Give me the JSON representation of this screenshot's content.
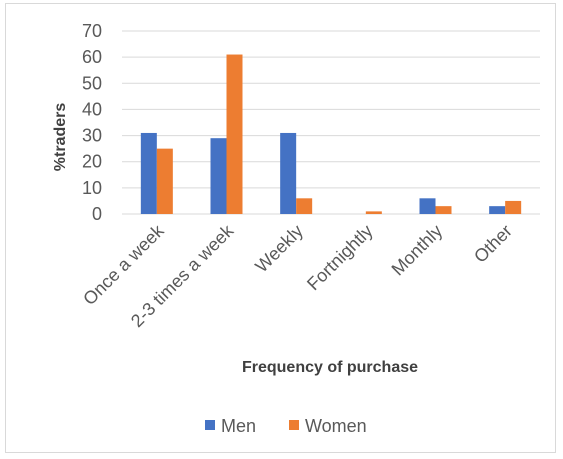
{
  "chart_data": {
    "type": "bar",
    "title": "",
    "xlabel": "Frequency of purchase",
    "ylabel": "%traders",
    "categories": [
      "Once a week",
      "2-3 times a week",
      "Weekly",
      "Fortnightly",
      "Monthly",
      "Other"
    ],
    "series": [
      {
        "name": "Men",
        "values": [
          31,
          29,
          31,
          0,
          6,
          3
        ],
        "color": "#4472C4"
      },
      {
        "name": "Women",
        "values": [
          25,
          61,
          6,
          1,
          3,
          5
        ],
        "color": "#ED7D31"
      }
    ],
    "ylim": [
      0,
      70
    ],
    "yticks": [
      "0",
      "10",
      "20",
      "30",
      "40",
      "50",
      "60",
      "70"
    ],
    "grid": true,
    "legend": "bottom",
    "gridline_color": "#d9d9d9"
  }
}
